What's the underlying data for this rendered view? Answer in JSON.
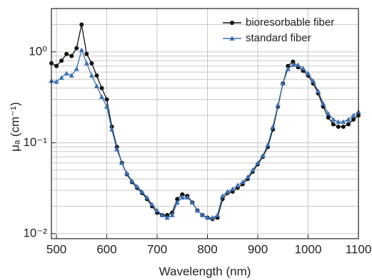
{
  "chart_data": {
    "type": "line",
    "xlabel": "Wavelength (nm)",
    "ylabel": "μₐ (cm⁻¹)",
    "x": [
      490,
      500,
      510,
      520,
      530,
      540,
      550,
      560,
      570,
      580,
      590,
      600,
      610,
      620,
      630,
      640,
      650,
      660,
      670,
      680,
      690,
      700,
      710,
      720,
      730,
      740,
      750,
      760,
      770,
      780,
      790,
      800,
      810,
      820,
      830,
      840,
      850,
      860,
      870,
      880,
      890,
      900,
      910,
      920,
      930,
      940,
      950,
      960,
      970,
      980,
      990,
      1000,
      1010,
      1020,
      1030,
      1040,
      1050,
      1060,
      1070,
      1080,
      1090,
      1100
    ],
    "series": [
      {
        "name": "bioresorbable fiber",
        "color": "#111111",
        "marker": "circle",
        "values": [
          0.75,
          0.7,
          0.8,
          0.95,
          0.9,
          1.1,
          2.0,
          0.95,
          0.75,
          0.55,
          0.4,
          0.3,
          0.15,
          0.09,
          0.06,
          0.045,
          0.037,
          0.032,
          0.028,
          0.024,
          0.02,
          0.017,
          0.016,
          0.016,
          0.017,
          0.024,
          0.027,
          0.026,
          0.022,
          0.018,
          0.016,
          0.015,
          0.0145,
          0.015,
          0.024,
          0.028,
          0.029,
          0.032,
          0.035,
          0.04,
          0.048,
          0.058,
          0.07,
          0.09,
          0.14,
          0.25,
          0.45,
          0.7,
          0.78,
          0.68,
          0.62,
          0.55,
          0.45,
          0.35,
          0.25,
          0.19,
          0.16,
          0.15,
          0.15,
          0.16,
          0.18,
          0.2
        ]
      },
      {
        "name": "standard fiber",
        "color": "#3a6fb5",
        "marker": "triangle",
        "values": [
          0.48,
          0.47,
          0.52,
          0.58,
          0.55,
          0.65,
          1.05,
          0.75,
          0.55,
          0.42,
          0.32,
          0.25,
          0.14,
          0.085,
          0.06,
          0.046,
          0.038,
          0.033,
          0.029,
          0.025,
          0.021,
          0.018,
          0.016,
          0.015,
          0.016,
          0.022,
          0.025,
          0.025,
          0.022,
          0.018,
          0.016,
          0.015,
          0.015,
          0.016,
          0.026,
          0.029,
          0.031,
          0.034,
          0.037,
          0.042,
          0.05,
          0.06,
          0.072,
          0.095,
          0.15,
          0.26,
          0.45,
          0.65,
          0.72,
          0.72,
          0.66,
          0.58,
          0.48,
          0.37,
          0.27,
          0.21,
          0.18,
          0.17,
          0.17,
          0.18,
          0.2,
          0.22
        ]
      }
    ],
    "xlim": [
      490,
      1100
    ],
    "xticks": [
      500,
      600,
      700,
      800,
      900,
      1000,
      1100
    ],
    "ylim": [
      0.0088,
      3
    ],
    "yscale": "log",
    "yticks": [
      {
        "value": 0.01,
        "label": "10⁻²"
      },
      {
        "value": 0.1,
        "label": "10⁻¹"
      },
      {
        "value": 1,
        "label": "10⁰"
      }
    ],
    "yminorticks": [
      0.02,
      0.03,
      0.04,
      0.05,
      0.06,
      0.07,
      0.08,
      0.09,
      0.2,
      0.3,
      0.4,
      0.5,
      0.6,
      0.7,
      0.8,
      0.9,
      2
    ],
    "grid": true,
    "legend": "upper right"
  }
}
